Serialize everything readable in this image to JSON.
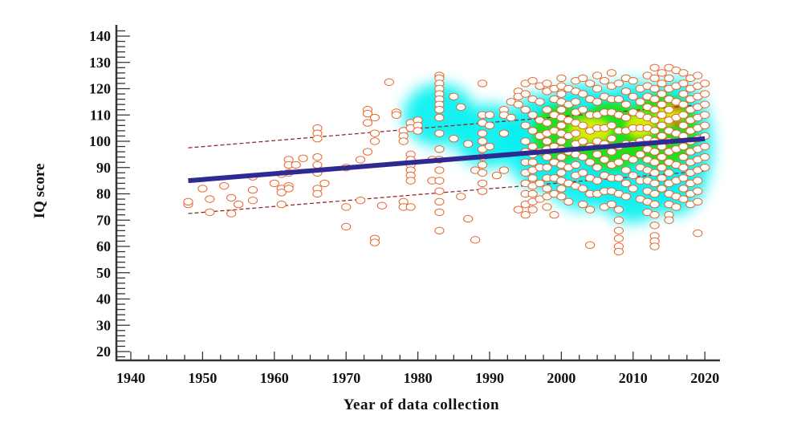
{
  "chart_data": {
    "type": "scatter",
    "title": "",
    "xlabel": "Year of data collection",
    "ylabel": "IQ score",
    "xlim": [
      1940,
      2022
    ],
    "ylim": [
      17,
      143
    ],
    "x_ticks": [
      1940,
      1950,
      1960,
      1970,
      1980,
      1990,
      2000,
      2010,
      2020
    ],
    "y_ticks": [
      20,
      30,
      40,
      50,
      60,
      70,
      80,
      90,
      100,
      110,
      120,
      130,
      140
    ],
    "grid": false,
    "legend": "none",
    "colors": {
      "marker_stroke": "#e8642a",
      "marker_fill": "#ffffff",
      "regression": "#2e2a91",
      "band": "#8b1e1e",
      "density_low": "#00f0f0",
      "density_mid": "#22e000",
      "density_high": "#f0f000",
      "density_peak": "#ff1a00"
    },
    "regression_line": {
      "x": [
        1948,
        2020
      ],
      "y": [
        85,
        101
      ]
    },
    "prediction_band_upper": {
      "x": [
        1948,
        2020
      ],
      "y": [
        97.5,
        114
      ]
    },
    "prediction_band_lower": {
      "x": [
        1948,
        2020
      ],
      "y": [
        72.5,
        88.7
      ]
    },
    "series": [
      {
        "x": 1948,
        "y": [
          76,
          77
        ]
      },
      {
        "x": 1950,
        "y": [
          82
        ]
      },
      {
        "x": 1951,
        "y": [
          78,
          73
        ]
      },
      {
        "x": 1953,
        "y": [
          83
        ]
      },
      {
        "x": 1954,
        "y": [
          78.5,
          72.5
        ]
      },
      {
        "x": 1955,
        "y": [
          76
        ]
      },
      {
        "x": 1957,
        "y": [
          86.5,
          81.5,
          77.5
        ]
      },
      {
        "x": 1960,
        "y": [
          84
        ]
      },
      {
        "x": 1961,
        "y": [
          87.5,
          82,
          80.5,
          76
        ]
      },
      {
        "x": 1962,
        "y": [
          93,
          91,
          88,
          83,
          82
        ]
      },
      {
        "x": 1963,
        "y": [
          91
        ]
      },
      {
        "x": 1964,
        "y": [
          93.5
        ]
      },
      {
        "x": 1966,
        "y": [
          105,
          103,
          101,
          94,
          91,
          88,
          82,
          80
        ]
      },
      {
        "x": 1967,
        "y": [
          84
        ]
      },
      {
        "x": 1970,
        "y": [
          90,
          75,
          67.5
        ]
      },
      {
        "x": 1972,
        "y": [
          93,
          77.5
        ]
      },
      {
        "x": 1973,
        "y": [
          112,
          110.5,
          107,
          96
        ]
      },
      {
        "x": 1974,
        "y": [
          109,
          103,
          100,
          63,
          61.5
        ]
      },
      {
        "x": 1975,
        "y": [
          75.5
        ]
      },
      {
        "x": 1976,
        "y": [
          122.5
        ]
      },
      {
        "x": 1977,
        "y": [
          111,
          110
        ]
      },
      {
        "x": 1978,
        "y": [
          104,
          102,
          100,
          77,
          75
        ]
      },
      {
        "x": 1979,
        "y": [
          107,
          105,
          95,
          93,
          91,
          89,
          87,
          85,
          75
        ]
      },
      {
        "x": 1980,
        "y": [
          108,
          106,
          104
        ]
      },
      {
        "x": 1982,
        "y": [
          93,
          85
        ]
      },
      {
        "x": 1983,
        "y": [
          125,
          124,
          122,
          120,
          118,
          116,
          114,
          112,
          109,
          103,
          97,
          93,
          89,
          85,
          81,
          77,
          73,
          66
        ]
      },
      {
        "x": 1985,
        "y": [
          117,
          101
        ]
      },
      {
        "x": 1986,
        "y": [
          113,
          79
        ]
      },
      {
        "x": 1987,
        "y": [
          99,
          70.5
        ]
      },
      {
        "x": 1988,
        "y": [
          89,
          62.5
        ]
      },
      {
        "x": 1989,
        "y": [
          122,
          110,
          107,
          103,
          100,
          97,
          94,
          91,
          88,
          84,
          81
        ]
      },
      {
        "x": 1990,
        "y": [
          110,
          106,
          98
        ]
      },
      {
        "x": 1991,
        "y": [
          87
        ]
      },
      {
        "x": 1992,
        "y": [
          112,
          110,
          103,
          89
        ]
      },
      {
        "x": 1993,
        "y": [
          115,
          109
        ]
      },
      {
        "x": 1994,
        "y": [
          119,
          117,
          114,
          74
        ]
      },
      {
        "x": 1995,
        "y": [
          122,
          118,
          112,
          106,
          100,
          96,
          92,
          88,
          84,
          80,
          76,
          72
        ]
      },
      {
        "x": 1996,
        "y": [
          123,
          116,
          110,
          104,
          98,
          95,
          92,
          89,
          86,
          83,
          80,
          77,
          74
        ]
      },
      {
        "x": 1997,
        "y": [
          121,
          115,
          108,
          102,
          96,
          90,
          84,
          78
        ]
      },
      {
        "x": 1998,
        "y": [
          122,
          119,
          112,
          107,
          103,
          100,
          97,
          94,
          90,
          86,
          82,
          79,
          75
        ]
      },
      {
        "x": 1999,
        "y": [
          120,
          116,
          110,
          104,
          98,
          92,
          86,
          80,
          72
        ]
      },
      {
        "x": 2000,
        "y": [
          124,
          121,
          118,
          115,
          112,
          109,
          106,
          103,
          100,
          97,
          94,
          91,
          88,
          85,
          82,
          79
        ]
      },
      {
        "x": 2001,
        "y": [
          120,
          114,
          108,
          102,
          96,
          90,
          84,
          77
        ]
      },
      {
        "x": 2002,
        "y": [
          123,
          119,
          115,
          111,
          107,
          103,
          99,
          95,
          91,
          87,
          83
        ]
      },
      {
        "x": 2003,
        "y": [
          124,
          118,
          112,
          106,
          100,
          94,
          88,
          82,
          76
        ]
      },
      {
        "x": 2004,
        "y": [
          122,
          116,
          110,
          104,
          98,
          92,
          86,
          80,
          74,
          60.5
        ]
      },
      {
        "x": 2005,
        "y": [
          125,
          120,
          115,
          110,
          105,
          100,
          95,
          90,
          85,
          80
        ]
      },
      {
        "x": 2006,
        "y": [
          123,
          117,
          111,
          105,
          99,
          93,
          87,
          81,
          75
        ]
      },
      {
        "x": 2007,
        "y": [
          126,
          121,
          116,
          111,
          106,
          101,
          96,
          91,
          86,
          81,
          76
        ]
      },
      {
        "x": 2008,
        "y": [
          122,
          116,
          110,
          104,
          98,
          92,
          86,
          80,
          74,
          70,
          66,
          63,
          60,
          58
        ]
      },
      {
        "x": 2009,
        "y": [
          124,
          119,
          114,
          109,
          104,
          99,
          94,
          89,
          84,
          79
        ]
      },
      {
        "x": 2010,
        "y": [
          123,
          117,
          111,
          105,
          99,
          93,
          87,
          82
        ]
      },
      {
        "x": 2011,
        "y": [
          120,
          115,
          110,
          105,
          100,
          95,
          90,
          85,
          78
        ]
      },
      {
        "x": 2012,
        "y": [
          125,
          121,
          117,
          113,
          109,
          105,
          101,
          97,
          93,
          89,
          85,
          81,
          77,
          73
        ]
      },
      {
        "x": 2013,
        "y": [
          128,
          124,
          120,
          116,
          112,
          108,
          104,
          100,
          96,
          92,
          88,
          84,
          80,
          76,
          72,
          68,
          64,
          62,
          60
        ]
      },
      {
        "x": 2014,
        "y": [
          126,
          122,
          118,
          114,
          110,
          106,
          102,
          98,
          94,
          90,
          86,
          82
        ]
      },
      {
        "x": 2015,
        "y": [
          128,
          124,
          120,
          116,
          112,
          108,
          104,
          100,
          96,
          92,
          88,
          84,
          80,
          76,
          72,
          70
        ]
      },
      {
        "x": 2016,
        "y": [
          127,
          121,
          115,
          109,
          103,
          97,
          91,
          85,
          79,
          75
        ]
      },
      {
        "x": 2017,
        "y": [
          126,
          122,
          118,
          114,
          110,
          106,
          102,
          98,
          94,
          90,
          86,
          82,
          78
        ]
      },
      {
        "x": 2018,
        "y": [
          124,
          120,
          116,
          112,
          108,
          104,
          100,
          96,
          92,
          88,
          84,
          80,
          76
        ]
      },
      {
        "x": 2019,
        "y": [
          125,
          121,
          117,
          113,
          109,
          105,
          101,
          97,
          93,
          89,
          85,
          81,
          77,
          65
        ]
      },
      {
        "x": 2020,
        "y": [
          122,
          118,
          114,
          110,
          106,
          102,
          98,
          94,
          90
        ]
      }
    ],
    "density": [
      {
        "x": 1983,
        "y": 110,
        "level": "low",
        "sx": 5,
        "sy": 12
      },
      {
        "x": 1990,
        "y": 102,
        "level": "low",
        "sx": 5,
        "sy": 12
      },
      {
        "x": 1997,
        "y": 100,
        "level": "low",
        "sx": 5,
        "sy": 18
      },
      {
        "x": 2003,
        "y": 98,
        "level": "low",
        "sx": 7,
        "sy": 24
      },
      {
        "x": 2010,
        "y": 96,
        "level": "low",
        "sx": 7,
        "sy": 27
      },
      {
        "x": 2016,
        "y": 98,
        "level": "low",
        "sx": 5,
        "sy": 26
      },
      {
        "x": 2000,
        "y": 103,
        "level": "mid",
        "sx": 4,
        "sy": 11
      },
      {
        "x": 2007,
        "y": 102,
        "level": "mid",
        "sx": 5,
        "sy": 13
      },
      {
        "x": 2014,
        "y": 104,
        "level": "mid",
        "sx": 5,
        "sy": 14
      },
      {
        "x": 2004,
        "y": 104,
        "level": "high",
        "sx": 3,
        "sy": 5
      },
      {
        "x": 2011,
        "y": 106,
        "level": "high",
        "sx": 2,
        "sy": 5
      },
      {
        "x": 2015,
        "y": 110,
        "level": "high",
        "sx": 2,
        "sy": 4
      },
      {
        "x": 2016,
        "y": 113,
        "level": "peak",
        "sx": 0.7,
        "sy": 1.2
      },
      {
        "x": 2016,
        "y": 107,
        "level": "peak",
        "sx": 0.6,
        "sy": 1.2
      }
    ]
  }
}
